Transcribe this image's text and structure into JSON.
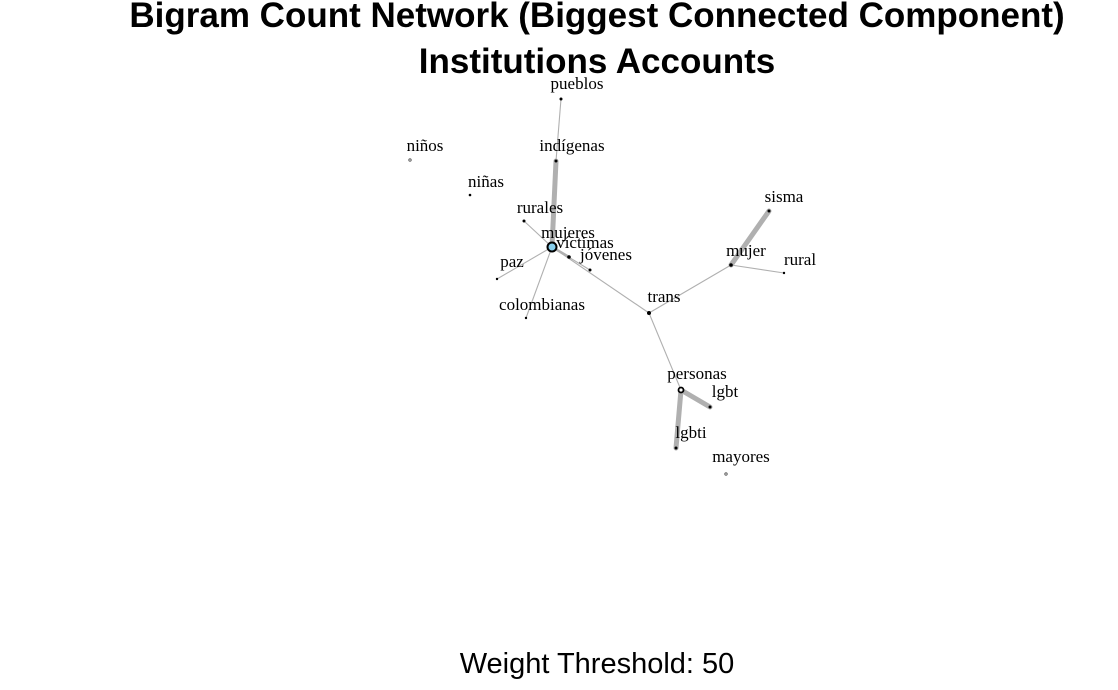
{
  "title": {
    "line1": "Bigram Count Network (Biggest Connected Component)",
    "line2": "Institutions Accounts"
  },
  "footer": "Weight Threshold: 50",
  "colors": {
    "edge": "#b0b0b0",
    "node": "#000000",
    "hub_fill": "#87ceeb"
  },
  "chart_data": {
    "type": "network",
    "nodes": [
      {
        "id": "pueblos"
      },
      {
        "id": "niños"
      },
      {
        "id": "indígenas"
      },
      {
        "id": "niñas"
      },
      {
        "id": "rurales"
      },
      {
        "id": "mujeres"
      },
      {
        "id": "víctimas"
      },
      {
        "id": "jóvenes"
      },
      {
        "id": "paz"
      },
      {
        "id": "colombianas"
      },
      {
        "id": "sisma"
      },
      {
        "id": "mujer"
      },
      {
        "id": "rural"
      },
      {
        "id": "trans"
      },
      {
        "id": "personas"
      },
      {
        "id": "lgbt"
      },
      {
        "id": "lgbti"
      },
      {
        "id": "mayores"
      }
    ],
    "edges": [
      {
        "source": "indígenas",
        "target": "pueblos",
        "weight": "low"
      },
      {
        "source": "mujeres",
        "target": "indígenas",
        "weight": "high"
      },
      {
        "source": "mujeres",
        "target": "rurales",
        "weight": "low"
      },
      {
        "source": "mujeres",
        "target": "víctimas",
        "weight": "medium"
      },
      {
        "source": "mujeres",
        "target": "jóvenes",
        "weight": "low"
      },
      {
        "source": "mujeres",
        "target": "paz",
        "weight": "low"
      },
      {
        "source": "mujeres",
        "target": "colombianas",
        "weight": "low"
      },
      {
        "source": "mujeres",
        "target": "trans",
        "weight": "low"
      },
      {
        "source": "mujer",
        "target": "trans",
        "weight": "low"
      },
      {
        "source": "mujer",
        "target": "sisma",
        "weight": "high"
      },
      {
        "source": "mujer",
        "target": "rural",
        "weight": "low"
      },
      {
        "source": "personas",
        "target": "trans",
        "weight": "low"
      },
      {
        "source": "personas",
        "target": "lgbt",
        "weight": "high"
      },
      {
        "source": "personas",
        "target": "lgbti",
        "weight": "high"
      }
    ]
  }
}
